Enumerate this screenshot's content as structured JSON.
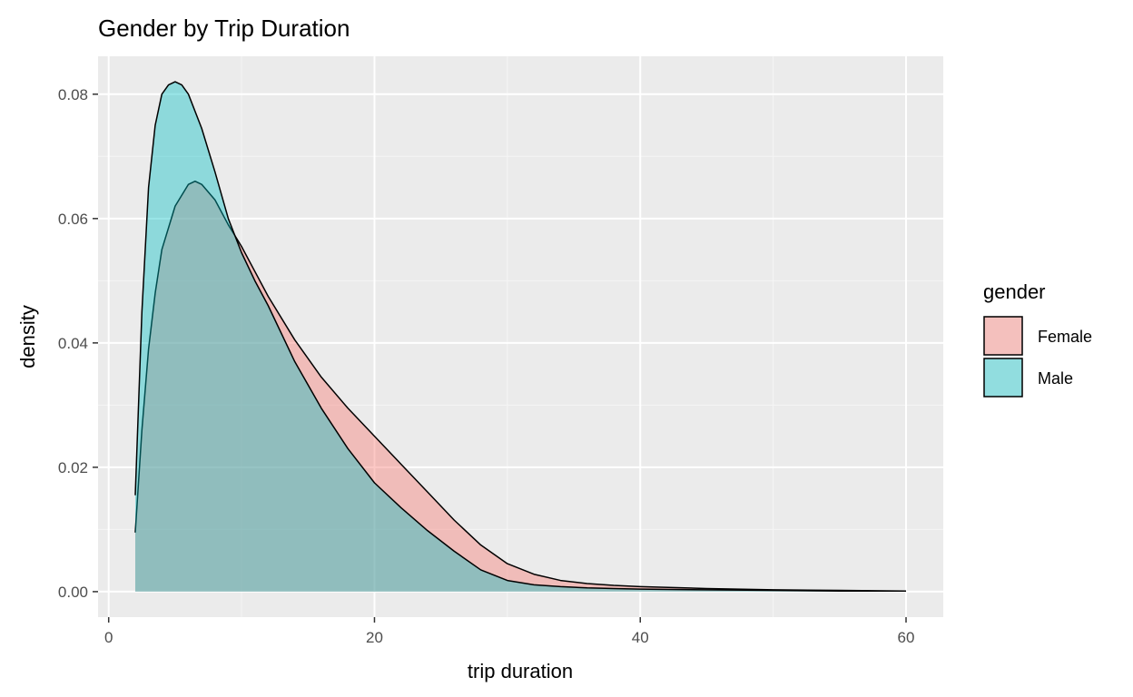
{
  "chart_data": {
    "type": "area",
    "title": "Gender by Trip Duration",
    "xlabel": "trip duration",
    "ylabel": "density",
    "xlim": [
      -0.8,
      62.8
    ],
    "ylim": [
      -0.0041,
      0.0861
    ],
    "x_ticks": [
      0,
      20,
      40,
      60
    ],
    "x_tick_labels": [
      "0",
      "20",
      "40",
      "60"
    ],
    "y_ticks": [
      0,
      0.02,
      0.04,
      0.06,
      0.08
    ],
    "y_tick_labels": [
      "0.00",
      "0.02",
      "0.04",
      "0.06",
      "0.08"
    ],
    "grid": true,
    "panel_background": "#ebebeb",
    "legend": {
      "title": "gender",
      "position": "right"
    },
    "series": [
      {
        "name": "Female",
        "color": "#f8766d",
        "x": [
          2,
          2.5,
          3,
          3.5,
          4,
          5,
          6,
          6.5,
          7,
          8,
          9,
          10,
          11,
          12,
          14,
          16,
          18,
          20,
          22,
          24,
          26,
          28,
          30,
          32,
          34,
          36,
          38,
          40,
          45,
          50,
          55,
          60
        ],
        "y": [
          0.0095,
          0.026,
          0.039,
          0.048,
          0.055,
          0.062,
          0.0655,
          0.066,
          0.0655,
          0.063,
          0.059,
          0.0555,
          0.0515,
          0.0475,
          0.0405,
          0.0345,
          0.0295,
          0.025,
          0.0205,
          0.016,
          0.0115,
          0.0075,
          0.0045,
          0.0028,
          0.0018,
          0.0013,
          0.001,
          0.0008,
          0.0005,
          0.0003,
          0.0002,
          0.0001
        ]
      },
      {
        "name": "Male",
        "color": "#00bfc4",
        "x": [
          2,
          2.5,
          3,
          3.5,
          4,
          4.5,
          5,
          5.5,
          6,
          7,
          8,
          9,
          10,
          11,
          12,
          14,
          16,
          18,
          20,
          22,
          24,
          26,
          28,
          30,
          32,
          34,
          36,
          38,
          40,
          45,
          50,
          55,
          60
        ],
        "y": [
          0.0155,
          0.045,
          0.065,
          0.075,
          0.08,
          0.0815,
          0.082,
          0.0815,
          0.08,
          0.0745,
          0.0675,
          0.06,
          0.0545,
          0.05,
          0.046,
          0.037,
          0.0295,
          0.023,
          0.0175,
          0.0135,
          0.0098,
          0.0065,
          0.0035,
          0.0018,
          0.0011,
          0.0008,
          0.0006,
          0.0005,
          0.0004,
          0.0003,
          0.0002,
          0.0001,
          0.0001
        ]
      }
    ]
  }
}
